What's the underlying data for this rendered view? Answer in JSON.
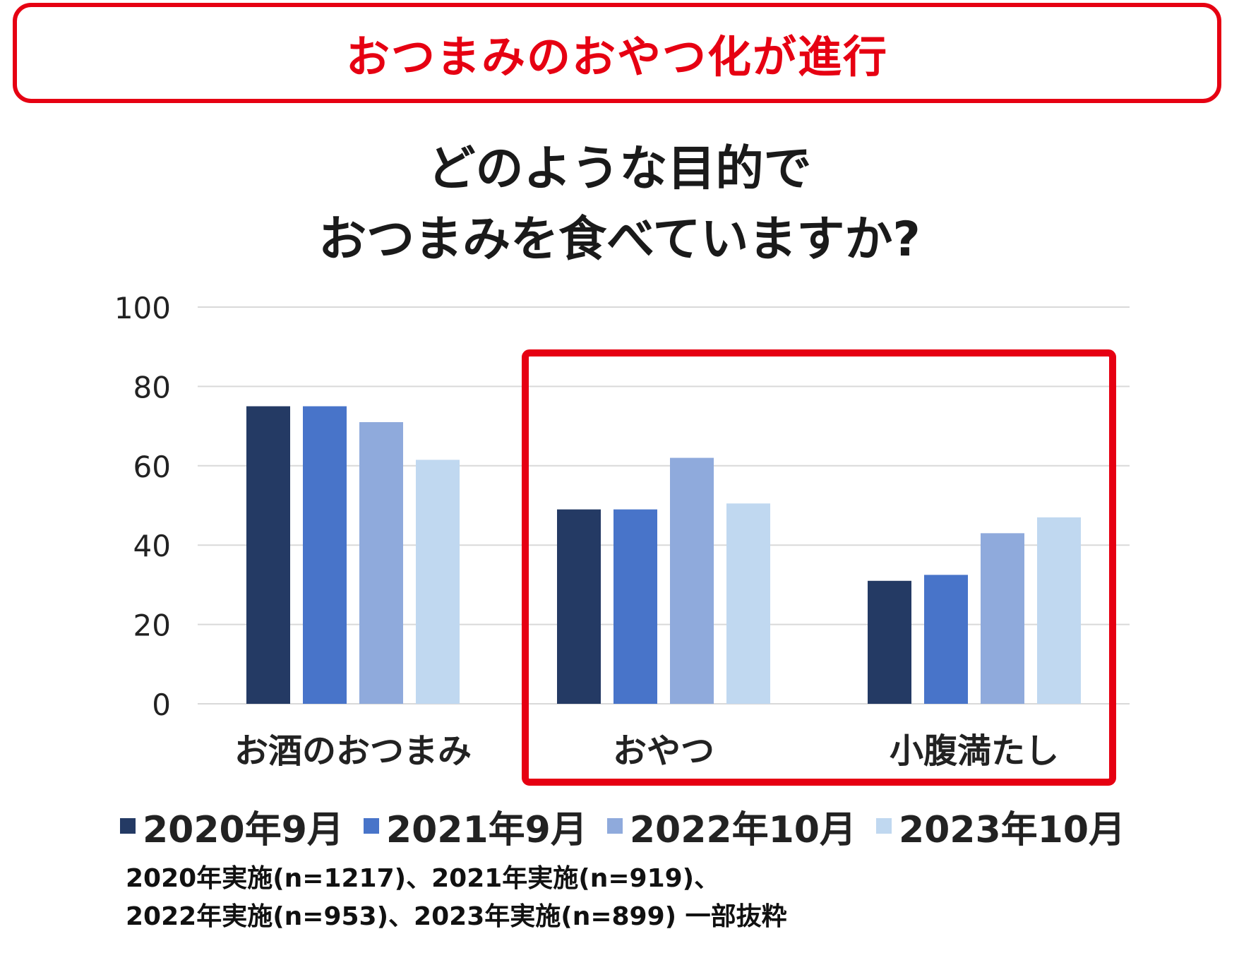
{
  "banner": {
    "text": "おつまみのおやつ化が進行",
    "color": "#e60012"
  },
  "title": {
    "line1": "どのような目的で",
    "line2": "おつまみを食べていますか?"
  },
  "chart_data": {
    "type": "bar",
    "categories": [
      "お酒のおつまみ",
      "おやつ",
      "小腹満たし"
    ],
    "series": [
      {
        "name": "2020年9月",
        "color": "#243a64",
        "values": [
          75,
          49,
          31
        ]
      },
      {
        "name": "2021年9月",
        "color": "#4874c9",
        "values": [
          75,
          49,
          32.5
        ]
      },
      {
        "name": "2022年10月",
        "color": "#8faadc",
        "values": [
          71,
          62,
          43
        ]
      },
      {
        "name": "2023年10月",
        "color": "#c0d8f0",
        "values": [
          61.5,
          50.5,
          47
        ]
      }
    ],
    "ylim": [
      0,
      100
    ],
    "yticks": [
      0,
      20,
      40,
      60,
      80,
      100
    ],
    "grid": true,
    "legend_position": "bottom",
    "highlight": {
      "categories": [
        "おやつ",
        "小腹満たし"
      ],
      "color": "#e60012"
    }
  },
  "footnote": {
    "line1": "2020年実施(n=1217)、2021年実施(n=919)、",
    "line2": "2022年実施(n=953)、2023年実施(n=899) 一部抜粋"
  }
}
